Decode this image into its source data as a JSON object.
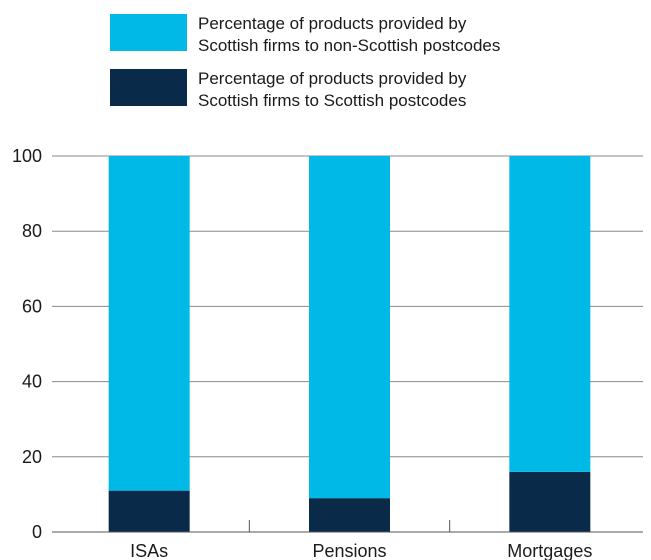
{
  "chart_data": {
    "type": "bar",
    "stacked": true,
    "orientation": "vertical",
    "categories": [
      "ISAs",
      "Pensions",
      "Mortgages"
    ],
    "series": [
      {
        "name": "Percentage of products provided by Scottish firms to Scottish postcodes",
        "legend_lines": [
          "Percentage of products provided by",
          "Scottish firms to Scottish postcodes"
        ],
        "color": "#0a2a4a",
        "values": [
          11,
          9,
          16
        ]
      },
      {
        "name": "Percentage of products provided by Scottish firms to non-Scottish postcodes",
        "legend_lines": [
          "Percentage of products provided by",
          "Scottish firms to non-Scottish postcodes"
        ],
        "color": "#00b9e6",
        "values": [
          89,
          91,
          84
        ]
      }
    ],
    "legend_order": [
      1,
      0
    ],
    "legend_position": "top",
    "ylim": [
      0,
      100
    ],
    "yticks": [
      0,
      20,
      40,
      60,
      80,
      100
    ],
    "grid": true,
    "title": "",
    "xlabel": "",
    "ylabel": ""
  }
}
